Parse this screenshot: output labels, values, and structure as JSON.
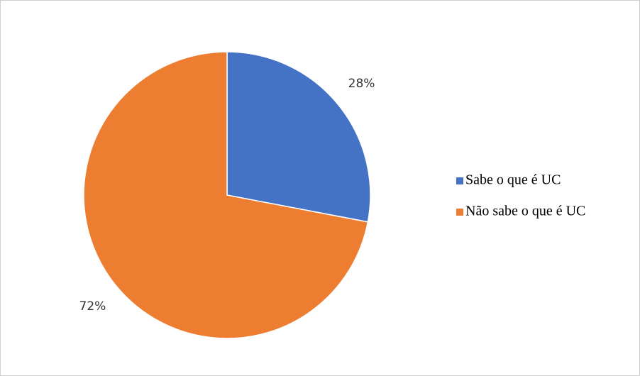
{
  "chart_data": {
    "type": "pie",
    "categories": [
      "Sabe o que é UC",
      "Não sabe o que é UC"
    ],
    "values": [
      28,
      72
    ],
    "value_labels": [
      "28%",
      "72%"
    ],
    "colors": [
      "#4472c4",
      "#ed7d31"
    ],
    "legend": "right"
  }
}
